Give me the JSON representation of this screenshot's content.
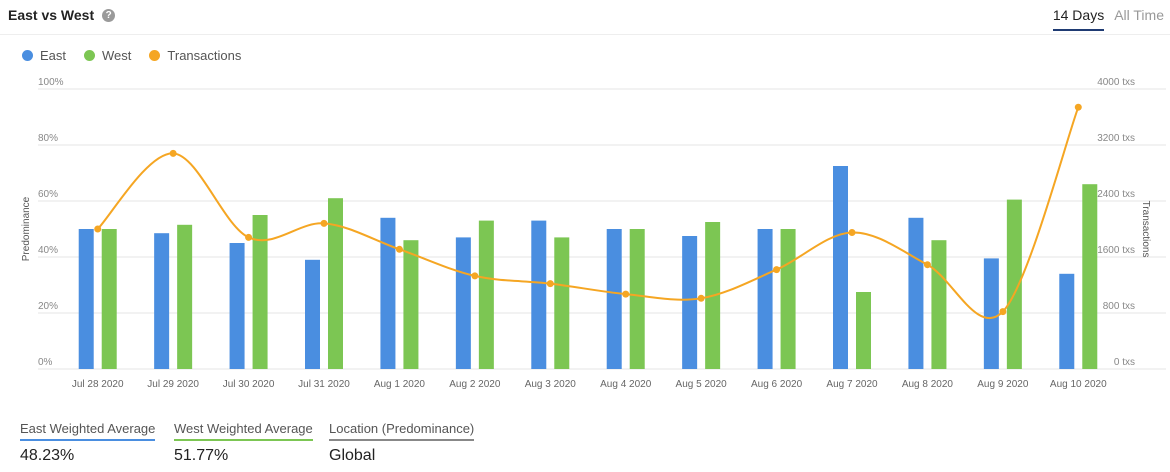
{
  "header": {
    "title": "East vs West",
    "tabs": [
      {
        "label": "14 Days",
        "active": true
      },
      {
        "label": "All Time",
        "active": false
      }
    ]
  },
  "legend": [
    {
      "label": "East",
      "color": "#4a8ee0"
    },
    {
      "label": "West",
      "color": "#7cc653"
    },
    {
      "label": "Transactions",
      "color": "#f5a623"
    }
  ],
  "chart_data": {
    "type": "bar",
    "categories": [
      "Jul 28 2020",
      "Jul 29 2020",
      "Jul 30 2020",
      "Jul 31 2020",
      "Aug 1 2020",
      "Aug 2 2020",
      "Aug 3 2020",
      "Aug 4 2020",
      "Aug 5 2020",
      "Aug 6 2020",
      "Aug 7 2020",
      "Aug 8 2020",
      "Aug 9 2020",
      "Aug 10 2020"
    ],
    "series": [
      {
        "name": "East",
        "type": "bar",
        "axis": "left",
        "color": "#4a8ee0",
        "values": [
          50,
          48.5,
          45,
          39,
          54,
          47,
          53,
          50,
          47.5,
          50,
          72.5,
          54,
          39.5,
          34
        ]
      },
      {
        "name": "West",
        "type": "bar",
        "axis": "left",
        "color": "#7cc653",
        "values": [
          50,
          51.5,
          55,
          61,
          46,
          53,
          47,
          50,
          52.5,
          50,
          27.5,
          46,
          60.5,
          66
        ]
      },
      {
        "name": "Transactions",
        "type": "line",
        "axis": "right",
        "color": "#f5a623",
        "values": [
          2000,
          3080,
          1880,
          2080,
          1710,
          1330,
          1220,
          1070,
          1010,
          1420,
          1950,
          1490,
          820,
          3740
        ]
      }
    ],
    "ylabel": "Predominance",
    "ylabel_right": "Transactions",
    "ylim": [
      0,
      100
    ],
    "ylim_right": [
      0,
      4000
    ],
    "yticks": [
      "0%",
      "20%",
      "40%",
      "60%",
      "80%",
      "100%"
    ],
    "yticks_right": [
      "0 txs",
      "800 txs",
      "1600 txs",
      "2400 txs",
      "3200 txs",
      "4000 txs"
    ],
    "grid": true,
    "legend_position": "top-left"
  },
  "stats": [
    {
      "label": "East Weighted Average",
      "value": "48.23%",
      "color": "#4a8ee0"
    },
    {
      "label": "West Weighted Average",
      "value": "51.77%",
      "color": "#7cc653"
    },
    {
      "label": "Location (Predominance)",
      "value": "Global",
      "color": "#888888"
    }
  ]
}
